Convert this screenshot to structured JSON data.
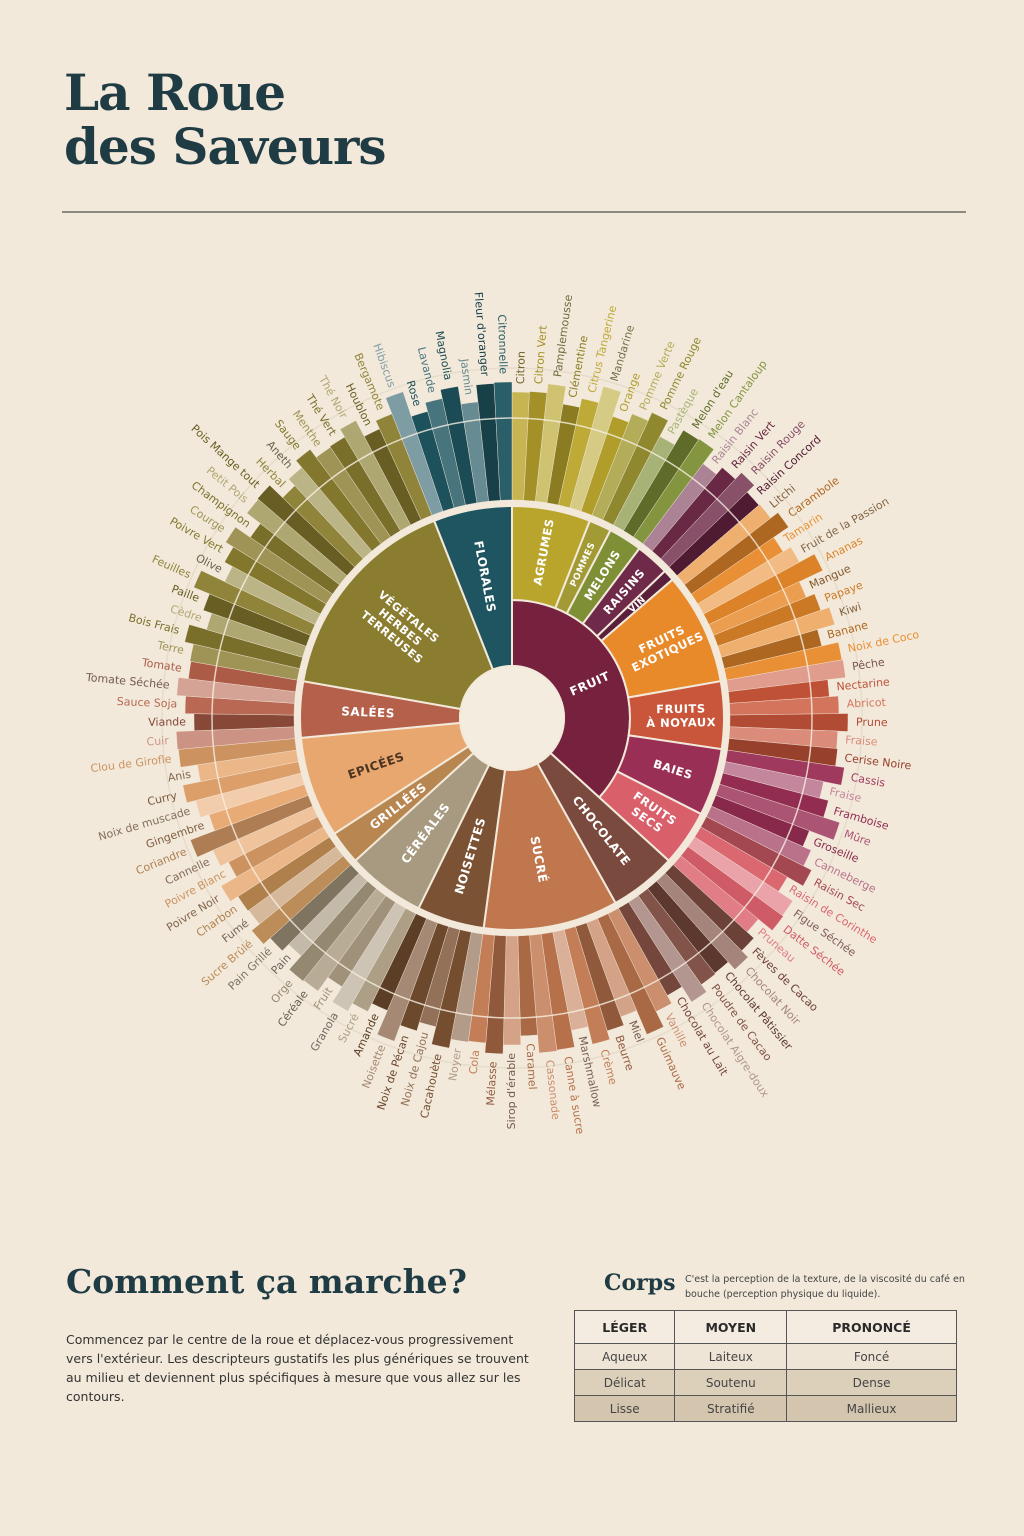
{
  "header": {
    "title_lines": [
      "La Roue",
      "des Saveurs"
    ]
  },
  "wheel": {
    "groups": [
      {
        "label": [
          "FRUIT"
        ],
        "color": "#76223f",
        "subgroups": [
          {
            "label": [
              "AGRUMES"
            ],
            "color": "#b9a52c",
            "descriptors": [
              "Citron",
              "Citron Vert",
              "Pamplemousse",
              "Clémentine",
              "Citrus Tangerine",
              "Mandarine",
              "Orange"
            ]
          },
          {
            "label": [
              "POMMES"
            ],
            "color": "#a29a34",
            "descriptors": [
              "Pomme Verte",
              "Pomme Rouge"
            ]
          },
          {
            "label": [
              "MELONS"
            ],
            "color": "#7e8f36",
            "descriptors": [
              "Pastèque",
              "Melon d'eau",
              "Melon Cantaloup"
            ]
          },
          {
            "label": [
              "RAISINS"
            ],
            "color": "#6e2a48",
            "descriptors": [
              "Raisin Blanc",
              "Raisin Vert",
              "Raisin Rouge"
            ]
          },
          {
            "label": [
              "VIN"
            ],
            "color": "#5a1f3a",
            "descriptors": [
              "Raisin Concord"
            ]
          },
          {
            "label": [
              "FRUITS",
              "EXOTIQUES"
            ],
            "color": "#e8892a",
            "descriptors": [
              "Litchi",
              "Carambole",
              "Tamarin",
              "Fruit de la Passion",
              "Ananas",
              "Mangue",
              "Papaye",
              "Kiwi",
              "Banane",
              "Noix de Coco"
            ]
          },
          {
            "label": [
              "FRUITS",
              "À NOYAUX"
            ],
            "color": "#c9553a",
            "descriptors": [
              "Pêche",
              "Nectarine",
              "Abricot",
              "Prune",
              "Fraise",
              "Cerise Noire"
            ]
          },
          {
            "label": [
              "BAIES"
            ],
            "color": "#9a2f55",
            "descriptors": [
              "Cassis",
              "Fraise",
              "Framboise",
              "Mûre",
              "Groseille",
              "Canneberge"
            ]
          },
          {
            "label": [
              "FRUITS",
              "SECS"
            ],
            "color": "#d9606a",
            "descriptors": [
              "Raisin Sec",
              "Raisin de Corinthe",
              "Figue Séchée",
              "Datte Séchée",
              "Pruneau"
            ]
          }
        ]
      },
      {
        "label": [
          "CHOCOLATE"
        ],
        "color": "#7b4a3e",
        "descriptors": [
          "Fèves de Cacao",
          "Chocolat Noir",
          "Chocolat Pâtissier",
          "Poudre de Cacao",
          "Chocolat Aigre-doux",
          "Chocolat au Lait"
        ]
      },
      {
        "label": [
          "SUCRÉ"
        ],
        "color": "#c0774e",
        "descriptors": [
          "Vanille",
          "Guimauve",
          "Miel",
          "Beurre",
          "Crème",
          "Marshmallow",
          "Canne à sucre",
          "Cassonade",
          "Caramel",
          "Sirop d'érable",
          "Mélasse",
          "Cola"
        ]
      },
      {
        "label": [
          "NOISETTES"
        ],
        "color": "#7b5233",
        "descriptors": [
          "Noyer",
          "Cacahouète",
          "Noix de Cajou",
          "Noix de Pécan",
          "Noisette",
          "Amande"
        ]
      },
      {
        "label": [
          "CÉRÉALES"
        ],
        "color": "#a89a80",
        "descriptors": [
          "Sucré",
          "Granola",
          "Fruit",
          "Céréale",
          "Orge",
          "Pain",
          "Pain Grillé"
        ]
      },
      {
        "label": [
          "GRILLÉES"
        ],
        "color": "#b88650",
        "descriptors": [
          "Sucre Brûlé",
          "Fumé",
          "Charbon"
        ]
      },
      {
        "label": [
          "EPICÉES"
        ],
        "color": "#e8a76e",
        "descriptors": [
          "Poivre Noir",
          "Poivre Blanc",
          "Cannelle",
          "Coriandre",
          "Gingembre",
          "Noix de muscade",
          "Curry",
          "Anis",
          "Clou de Girofle"
        ]
      },
      {
        "label": [
          "SALÉES"
        ],
        "color": "#b4604a",
        "descriptors": [
          "Cuir",
          "Viande",
          "Sauce Soja",
          "Tomate Séchée",
          "Tomate"
        ]
      },
      {
        "label": [
          "VÉGÉTALES",
          "HERBES",
          "TERREUSES"
        ],
        "color": "#8a7d30",
        "descriptors": [
          "Terre",
          "Bois Frais",
          "Cèdre",
          "Paille",
          "Feuilles",
          "Olive",
          "Poivre Vert",
          "Courge",
          "Champignon",
          "Petit Pois",
          "Pois Mange tout",
          "Herbal",
          "Aneth",
          "Sauge",
          "Menthe",
          "Thé Vert",
          "Thé Noir",
          "Houblon",
          "Bergamote"
        ]
      },
      {
        "label": [
          "FLORALES"
        ],
        "color": "#1f5560",
        "descriptors": [
          "Hibiscus",
          "Rose",
          "Lavande",
          "Magnolia",
          "Jasmin",
          "Fleur d'oranger",
          "Citronnelle"
        ]
      }
    ]
  },
  "guide": {
    "title": "Comment ça marche?",
    "text": "Commencez par le centre de la roue et déplacez-vous progressivement vers l'extérieur. Les descripteurs gustatifs les plus génériques se trouvent au milieu et deviennent plus spécifiques à mesure que vous allez sur les contours."
  },
  "body_table": {
    "title": "Corps",
    "note": "C'est la perception de la texture, de la viscosité du café en bouche (perception physique du liquide).",
    "columns": [
      "LÉGER",
      "MOYEN",
      "PRONONCÉ"
    ],
    "rows": [
      [
        "Aqueux",
        "Laiteux",
        "Foncé"
      ],
      [
        "Délicat",
        "Soutenu",
        "Dense"
      ],
      [
        "Lisse",
        "Stratifié",
        "Mallieux"
      ]
    ]
  }
}
